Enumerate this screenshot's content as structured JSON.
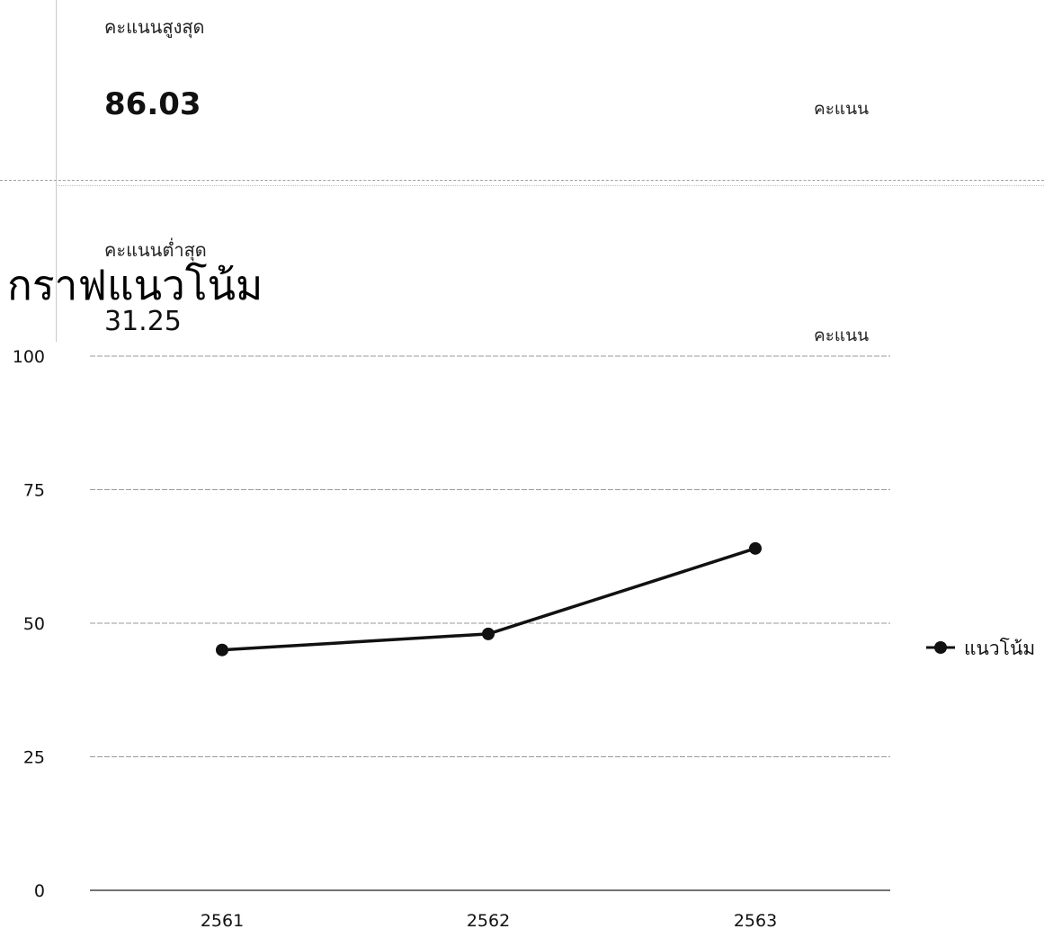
{
  "stats": {
    "max": {
      "label": "คะแนนสูงสุด",
      "value": "86.03",
      "unit": "คะแนน"
    },
    "min": {
      "label": "คะแนนต่ำสุด",
      "value": "31.25",
      "unit": "คะแนน"
    }
  },
  "chart_data": {
    "type": "line",
    "title": "กราฟแนวโน้ม",
    "categories": [
      "2561",
      "2562",
      "2563"
    ],
    "series": [
      {
        "name": "แนวโน้ม",
        "values": [
          45,
          48,
          64
        ],
        "color": "#111111"
      }
    ],
    "ylim": [
      0,
      100
    ],
    "yticks": [
      0,
      25,
      50,
      75,
      100
    ],
    "xlabel": "",
    "ylabel": "",
    "grid": true,
    "legend": "right"
  }
}
